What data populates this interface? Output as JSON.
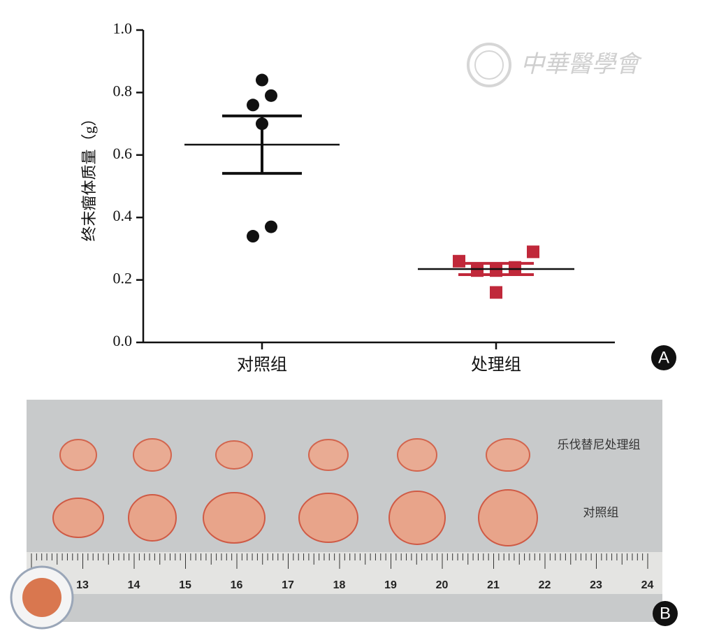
{
  "chart_data": {
    "type": "scatter",
    "ylabel": "终末瘤体质量（g）",
    "categories": [
      "对照组",
      "处理组"
    ],
    "ylim": [
      0,
      1.0
    ],
    "yticks": [
      {
        "value": 0,
        "label": "0.0"
      },
      0.2,
      0.4,
      0.6,
      0.8,
      {
        "value": 1.0,
        "label": "1.0"
      }
    ],
    "series": [
      {
        "color": "#111111",
        "marker": "circle",
        "values": [
          0.84,
          0.79,
          0.76,
          0.7,
          0.37,
          0.34
        ],
        "mean": 0.633,
        "error": 0.092
      },
      {
        "color": "#c0283a",
        "marker": "square",
        "values": [
          0.26,
          0.29,
          0.23,
          0.24,
          0.23,
          0.16
        ],
        "mean": 0.235,
        "error": 0.018
      }
    ]
  },
  "panel_labels": [
    "A",
    "B"
  ],
  "watermark": "中華醫學會",
  "photo": {
    "group_labels": [
      "乐伐替尼处理组",
      "对照组"
    ],
    "ruler_labels": [
      "13",
      "14",
      "15",
      "16",
      "17",
      "18",
      "19",
      "20",
      "21",
      "22",
      "23",
      "24"
    ]
  }
}
